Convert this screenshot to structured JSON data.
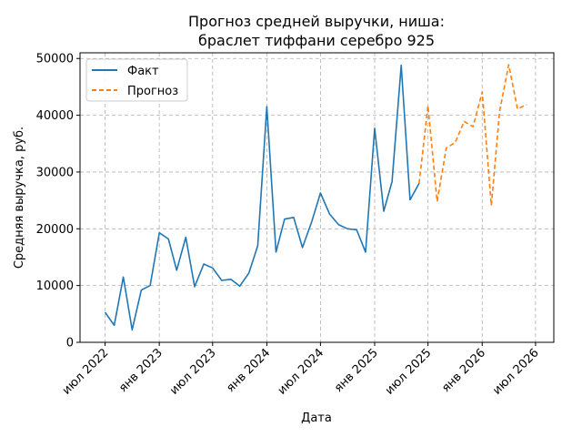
{
  "chart_data": {
    "type": "line",
    "title": [
      "Прогноз средней выручки, ниша:",
      "браслет тиффани серебро 925"
    ],
    "xlabel": "Дата",
    "ylabel": "Средняя выручка, руб.",
    "xlim": [
      "2022-04-07",
      "2026-09-01"
    ],
    "ylim": [
      0,
      51000
    ],
    "yticks": [
      0,
      10000,
      20000,
      30000,
      40000,
      50000
    ],
    "xticks": [
      {
        "date": "2022-07-01",
        "label": "июл 2022"
      },
      {
        "date": "2023-01-01",
        "label": "янв 2023"
      },
      {
        "date": "2023-07-01",
        "label": "июл 2023"
      },
      {
        "date": "2024-01-01",
        "label": "янв 2024"
      },
      {
        "date": "2024-07-01",
        "label": "июл 2024"
      },
      {
        "date": "2025-01-01",
        "label": "янв 2025"
      },
      {
        "date": "2025-07-01",
        "label": "июл 2025"
      },
      {
        "date": "2026-01-01",
        "label": "янв 2026"
      },
      {
        "date": "2026-07-01",
        "label": "июл 2026"
      }
    ],
    "grid": true,
    "legend_position": "top-left",
    "series": [
      {
        "name": "Факт",
        "color": "#1f77b4",
        "style": "solid",
        "points": [
          [
            "2022-07-01",
            5300
          ],
          [
            "2022-08-01",
            3000
          ],
          [
            "2022-09-01",
            11500
          ],
          [
            "2022-10-01",
            2200
          ],
          [
            "2022-11-01",
            9200
          ],
          [
            "2022-12-01",
            10000
          ],
          [
            "2023-01-01",
            19300
          ],
          [
            "2023-02-01",
            18200
          ],
          [
            "2023-03-01",
            12700
          ],
          [
            "2023-04-01",
            18500
          ],
          [
            "2023-05-01",
            9800
          ],
          [
            "2023-06-01",
            13800
          ],
          [
            "2023-07-01",
            13100
          ],
          [
            "2023-08-01",
            10900
          ],
          [
            "2023-09-01",
            11100
          ],
          [
            "2023-10-01",
            9900
          ],
          [
            "2023-11-01",
            12200
          ],
          [
            "2023-12-01",
            17000
          ],
          [
            "2024-01-01",
            41500
          ],
          [
            "2024-02-01",
            15900
          ],
          [
            "2024-03-01",
            21700
          ],
          [
            "2024-04-01",
            22000
          ],
          [
            "2024-05-01",
            16700
          ],
          [
            "2024-06-01",
            21200
          ],
          [
            "2024-07-01",
            26300
          ],
          [
            "2024-08-01",
            22600
          ],
          [
            "2024-09-01",
            20700
          ],
          [
            "2024-10-01",
            20000
          ],
          [
            "2024-11-01",
            19800
          ],
          [
            "2024-12-01",
            15900
          ],
          [
            "2025-01-01",
            37700
          ],
          [
            "2025-02-01",
            23100
          ],
          [
            "2025-03-01",
            28300
          ],
          [
            "2025-04-01",
            48800
          ],
          [
            "2025-05-01",
            25100
          ],
          [
            "2025-06-01",
            28000
          ]
        ]
      },
      {
        "name": "Прогноз",
        "color": "#ff7f0e",
        "style": "dashed",
        "points": [
          [
            "2025-06-01",
            28000
          ],
          [
            "2025-07-01",
            41700
          ],
          [
            "2025-08-01",
            24800
          ],
          [
            "2025-09-01",
            34200
          ],
          [
            "2025-10-01",
            35200
          ],
          [
            "2025-11-01",
            38900
          ],
          [
            "2025-12-01",
            38000
          ],
          [
            "2026-01-01",
            44100
          ],
          [
            "2026-02-01",
            24100
          ],
          [
            "2026-03-01",
            40700
          ],
          [
            "2026-04-01",
            48900
          ],
          [
            "2026-05-01",
            41100
          ],
          [
            "2026-06-01",
            41900
          ]
        ]
      }
    ]
  }
}
